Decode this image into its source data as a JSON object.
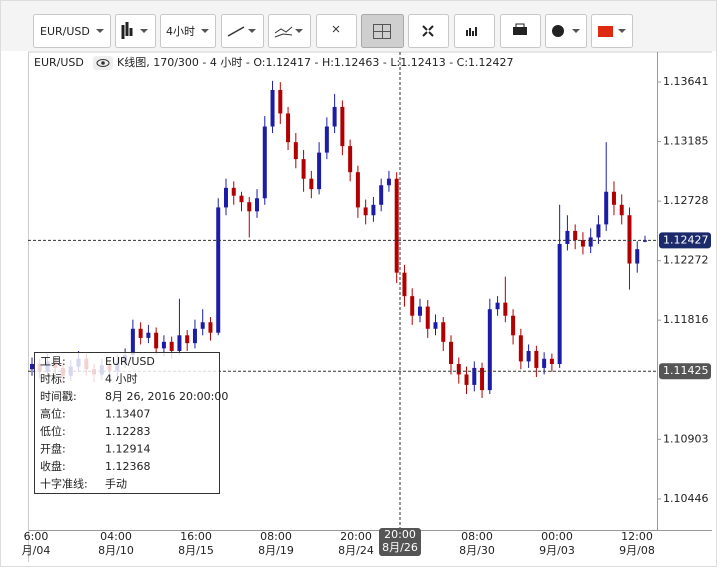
{
  "chart_data": {
    "type": "candlestick",
    "toolbar": {
      "symbol": "EUR/USD",
      "timeframe": "4小时"
    },
    "header": {
      "symbol": "EUR/USD",
      "info": "K线图, 170/300 - 4 小时 - O:1.12417 - H:1.12463 - L:1.12413 - C:1.12427"
    },
    "ylim": [
      1.10208,
      1.13871
    ],
    "yticks": [
      1.13641,
      1.13185,
      1.12728,
      1.12272,
      1.11816,
      1.10903,
      1.10446
    ],
    "x_labels": [
      {
        "time": "6:00",
        "date": "月/04"
      },
      {
        "time": "04:00",
        "date": "8月/10"
      },
      {
        "time": "16:00",
        "date": "8月/15"
      },
      {
        "time": "08:00",
        "date": "8月/19"
      },
      {
        "time": "20:00",
        "date": "8月/24"
      },
      {
        "time": "08:00",
        "date": "8月/30"
      },
      {
        "time": "00:00",
        "date": "9月/03"
      },
      {
        "time": "12:00",
        "date": "9月/08"
      }
    ],
    "crosshair": {
      "time": "20:00",
      "date": "8月/26",
      "price": 1.11425
    },
    "last_price": 1.12427,
    "up_color": "#1c1ca6",
    "down_color": "#b20000",
    "open": [
      1.1144,
      1.1148,
      1.1142,
      1.115,
      1.1145,
      1.1139,
      1.1146,
      1.1152,
      1.1144,
      1.114,
      1.1147,
      1.1143,
      1.1149,
      1.1155,
      1.1175,
      1.1168,
      1.1172,
      1.116,
      1.1165,
      1.1158,
      1.117,
      1.1164,
      1.1175,
      1.118,
      1.1172,
      1.1268,
      1.1283,
      1.1277,
      1.1272,
      1.1265,
      1.1275,
      1.133,
      1.1358,
      1.134,
      1.1318,
      1.1305,
      1.129,
      1.1282,
      1.131,
      1.133,
      1.1345,
      1.1315,
      1.1295,
      1.1268,
      1.1262,
      1.127,
      1.1285,
      1.129,
      1.1218,
      1.12,
      1.1185,
      1.1192,
      1.1175,
      1.118,
      1.1165,
      1.1148,
      1.114,
      1.1132,
      1.1145,
      1.1128,
      1.119,
      1.1195,
      1.1185,
      1.117,
      1.115,
      1.1158,
      1.1145,
      1.1152,
      1.1148,
      1.124,
      1.125,
      1.1243,
      1.1238,
      1.1245,
      1.1255,
      1.128,
      1.127,
      1.1262,
      1.1225,
      1.12417
    ],
    "high": [
      1.1153,
      1.1152,
      1.1156,
      1.1154,
      1.1149,
      1.1151,
      1.1158,
      1.1156,
      1.1148,
      1.1152,
      1.1151,
      1.1155,
      1.116,
      1.1182,
      1.118,
      1.1178,
      1.1176,
      1.117,
      1.1169,
      1.1198,
      1.1174,
      1.1182,
      1.119,
      1.1184,
      1.1275,
      1.129,
      1.1288,
      1.128,
      1.1276,
      1.1282,
      1.1338,
      1.1365,
      1.1364,
      1.1345,
      1.1325,
      1.1312,
      1.1296,
      1.1318,
      1.1337,
      1.1355,
      1.135,
      1.132,
      1.13,
      1.1274,
      1.1276,
      1.129,
      1.1296,
      1.1295,
      1.1224,
      1.1206,
      1.1198,
      1.1197,
      1.1186,
      1.1184,
      1.117,
      1.1153,
      1.1146,
      1.115,
      1.1149,
      1.1198,
      1.12,
      1.1215,
      1.119,
      1.1175,
      1.1163,
      1.1162,
      1.1157,
      1.1156,
      1.127,
      1.1262,
      1.1255,
      1.1249,
      1.1252,
      1.1262,
      1.1318,
      1.1288,
      1.1278,
      1.1268,
      1.1242,
      1.12463
    ],
    "low": [
      1.1139,
      1.1137,
      1.1138,
      1.114,
      1.1133,
      1.1135,
      1.1142,
      1.1139,
      1.1134,
      1.1136,
      1.1138,
      1.1139,
      1.1145,
      1.1152,
      1.1163,
      1.1164,
      1.1155,
      1.1154,
      1.1152,
      1.1155,
      1.1158,
      1.116,
      1.117,
      1.1166,
      1.117,
      1.1262,
      1.127,
      1.1265,
      1.1245,
      1.126,
      1.127,
      1.1325,
      1.1332,
      1.1312,
      1.1298,
      1.128,
      1.1275,
      1.1278,
      1.1305,
      1.1325,
      1.1308,
      1.1288,
      1.126,
      1.1255,
      1.1257,
      1.1265,
      1.128,
      1.121,
      1.1192,
      1.1178,
      1.118,
      1.1168,
      1.117,
      1.1158,
      1.114,
      1.1133,
      1.1125,
      1.1127,
      1.1122,
      1.1125,
      1.1185,
      1.118,
      1.1163,
      1.1144,
      1.1145,
      1.1138,
      1.114,
      1.1142,
      1.1145,
      1.1235,
      1.1236,
      1.1232,
      1.1233,
      1.124,
      1.125,
      1.1262,
      1.1255,
      1.1205,
      1.1218,
      1.12413
    ],
    "close": [
      1.1148,
      1.1142,
      1.115,
      1.1145,
      1.1139,
      1.1146,
      1.1152,
      1.1144,
      1.114,
      1.1147,
      1.1143,
      1.1149,
      1.1155,
      1.1175,
      1.1168,
      1.1172,
      1.116,
      1.1165,
      1.1158,
      1.117,
      1.1164,
      1.1175,
      1.118,
      1.1172,
      1.1268,
      1.1283,
      1.1277,
      1.1272,
      1.1265,
      1.1275,
      1.133,
      1.1358,
      1.134,
      1.1318,
      1.1305,
      1.129,
      1.1282,
      1.131,
      1.133,
      1.1345,
      1.1315,
      1.1295,
      1.1268,
      1.1262,
      1.127,
      1.1285,
      1.129,
      1.1218,
      1.12,
      1.1185,
      1.1192,
      1.1175,
      1.118,
      1.1165,
      1.1148,
      1.114,
      1.1132,
      1.1145,
      1.1128,
      1.119,
      1.1195,
      1.1185,
      1.117,
      1.115,
      1.1158,
      1.1145,
      1.1152,
      1.1148,
      1.124,
      1.125,
      1.1243,
      1.1238,
      1.1245,
      1.1255,
      1.128,
      1.127,
      1.1262,
      1.1225,
      1.1236,
      1.12427
    ],
    "info_box": [
      [
        "工具:",
        "EUR/USD"
      ],
      [
        "时标:",
        "4 小时"
      ],
      [
        "时间戳:",
        "8月 26, 2016 20:00:00"
      ],
      [
        "高位:",
        "1.13407"
      ],
      [
        "低位:",
        "1.12283"
      ],
      [
        "开盘:",
        "1.12914"
      ],
      [
        "收盘:",
        "1.12368"
      ],
      [
        "十字准线:",
        "手动"
      ]
    ]
  }
}
